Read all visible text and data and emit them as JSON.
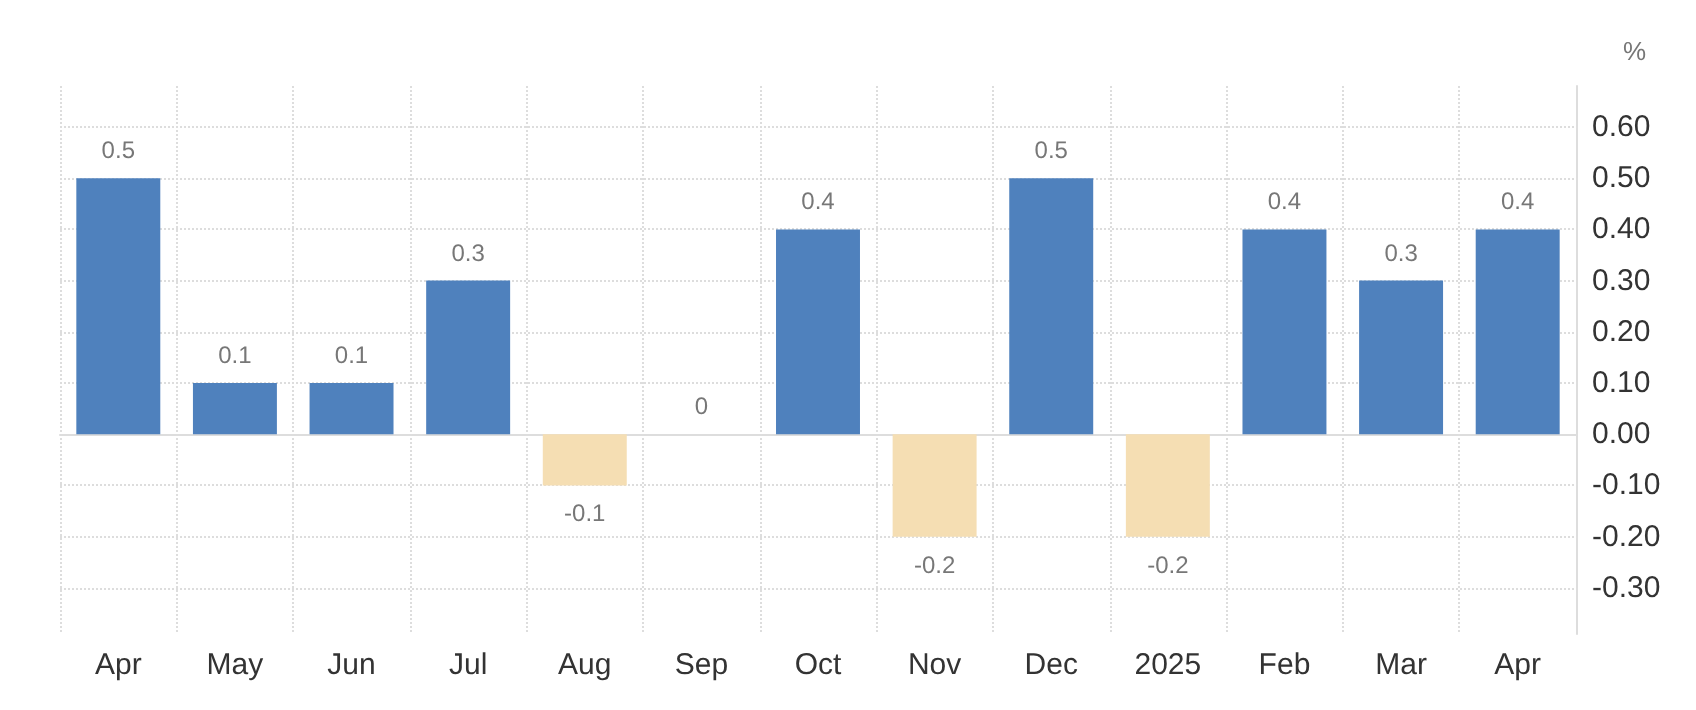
{
  "chart_data": {
    "type": "bar",
    "ylabel": "%",
    "categories": [
      "Apr",
      "May",
      "Jun",
      "Jul",
      "Aug",
      "Sep",
      "Oct",
      "Nov",
      "Dec",
      "2025",
      "Feb",
      "Mar",
      "Apr"
    ],
    "values": [
      0.5,
      0.1,
      0.1,
      0.3,
      -0.1,
      0,
      0.4,
      -0.2,
      0.5,
      -0.2,
      0.4,
      0.3,
      0.4
    ],
    "colors": [
      "#4f81bd",
      "#4f81bd",
      "#4f81bd",
      "#4f81bd",
      "#f5deb3",
      "#4f81bd",
      "#4f81bd",
      "#f5deb3",
      "#4f81bd",
      "#f5deb3",
      "#4f81bd",
      "#4f81bd",
      "#4f81bd"
    ],
    "ylim": [
      -0.39,
      0.68
    ],
    "yticks": [
      {
        "value": -0.3,
        "label": "-0.30"
      },
      {
        "value": -0.2,
        "label": "-0.20"
      },
      {
        "value": -0.1,
        "label": "-0.10"
      },
      {
        "value": 0,
        "label": "0.00"
      },
      {
        "value": 0.1,
        "label": "0.10"
      },
      {
        "value": 0.2,
        "label": "0.20"
      },
      {
        "value": 0.3,
        "label": "0.30"
      },
      {
        "value": 0.4,
        "label": "0.40"
      },
      {
        "value": 0.5,
        "label": "0.50"
      },
      {
        "value": 0.6,
        "label": "0.60"
      }
    ],
    "grid": true,
    "data_labels": true
  }
}
